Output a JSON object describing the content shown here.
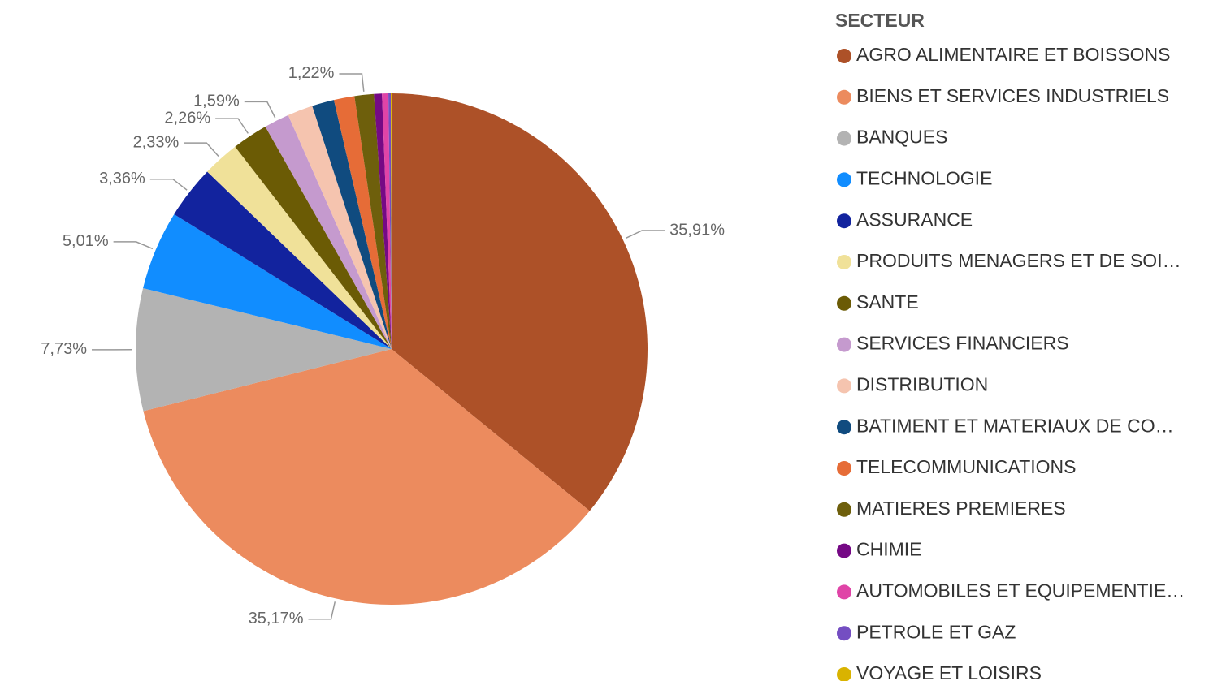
{
  "chart_data": {
    "type": "pie",
    "legend_title": "SECTEUR",
    "legend_position": "right",
    "categories": [
      "AGRO ALIMENTAIRE ET BOISSONS",
      "BIENS ET SERVICES INDUSTRIELS",
      "BANQUES",
      "TECHNOLOGIE",
      "ASSURANCE",
      "PRODUITS MENAGERS ET DE SOI…",
      "SANTE",
      "SERVICES FINANCIERS",
      "DISTRIBUTION",
      "BATIMENT ET MATERIAUX DE CO…",
      "TELECOMMUNICATIONS",
      "MATIERES PREMIERES",
      "CHIMIE",
      "AUTOMOBILES ET EQUIPEMENTIE…",
      "PETROLE ET GAZ",
      "VOYAGE ET LOISIRS"
    ],
    "values": [
      35.91,
      35.17,
      7.73,
      5.01,
      3.36,
      2.33,
      2.26,
      1.59,
      1.6,
      1.4,
      1.3,
      1.22,
      0.5,
      0.4,
      0.15,
      0.05
    ],
    "value_labels": [
      "35,91%",
      "35,17%",
      "7,73%",
      "5,01%",
      "3,36%",
      "2,33%",
      "2,26%",
      "1,59%",
      null,
      null,
      null,
      "1,22%",
      null,
      null,
      null,
      null
    ],
    "colors": [
      "#AD5128",
      "#EC8B5E",
      "#B3B3B3",
      "#118DFF",
      "#12239E",
      "#F0E199",
      "#6B5B05",
      "#C59ACE",
      "#F5C4AF",
      "#104B7F",
      "#E66C37",
      "#6E5F0C",
      "#750985",
      "#E044A7",
      "#744EC2",
      "#D9B300"
    ]
  }
}
